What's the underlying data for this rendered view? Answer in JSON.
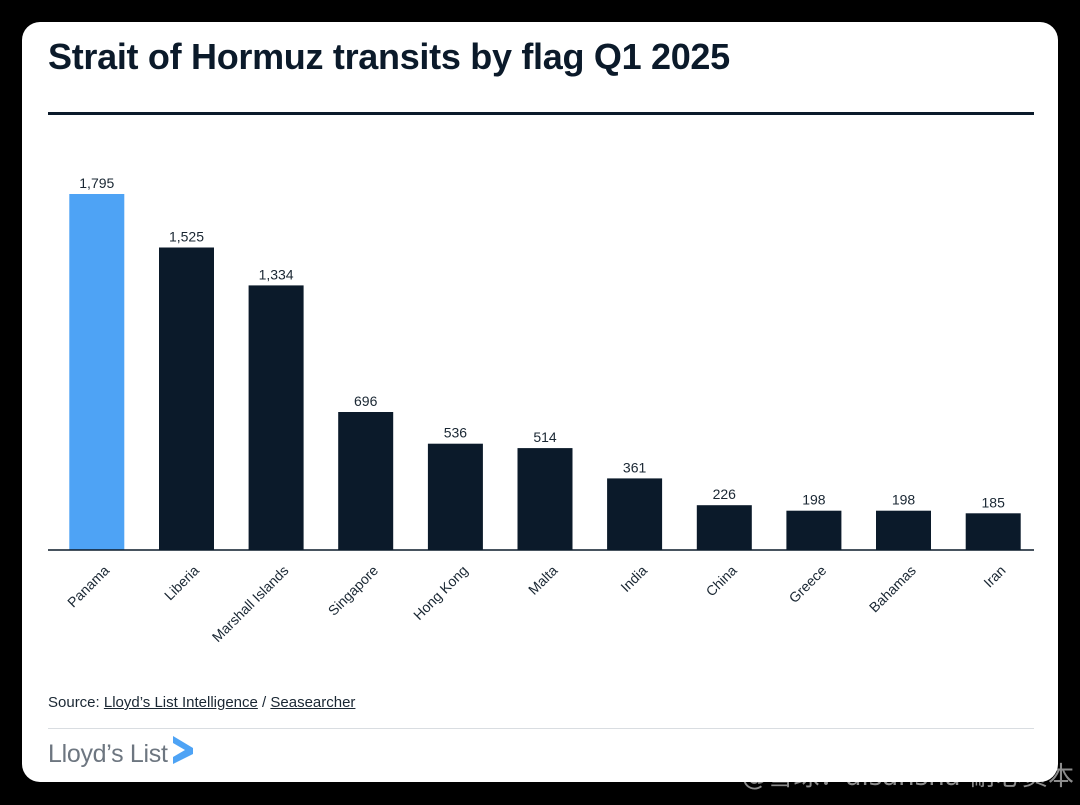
{
  "header": {
    "title": "Strait of Hormuz transits by flag Q1 2025"
  },
  "chart_data": {
    "type": "bar",
    "title": "Strait of Hormuz transits by flag Q1 2025",
    "xlabel": "",
    "ylabel": "",
    "ylim": [
      0,
      1795
    ],
    "grid": false,
    "categories": [
      "Panama",
      "Liberia",
      "Marshall Islands",
      "Singapore",
      "Hong Kong",
      "Malta",
      "India",
      "China",
      "Greece",
      "Bahamas",
      "Iran"
    ],
    "values": [
      1795,
      1525,
      1334,
      696,
      536,
      514,
      361,
      226,
      198,
      198,
      185
    ],
    "value_labels": [
      "1,795",
      "1,525",
      "1,334",
      "696",
      "536",
      "514",
      "361",
      "226",
      "198",
      "198",
      "185"
    ],
    "highlight_index": 0,
    "colors": {
      "bar": "#0b1a2a",
      "highlight": "#4ea3f5",
      "axis": "#0b1a2a",
      "label": "#1a2733"
    }
  },
  "footer": {
    "source_prefix": "Source: ",
    "source_link_1": "Lloyd’s List Intelligence",
    "source_separator": " / ",
    "source_link_2": "Seasearcher",
    "brand": "Lloyd’s List"
  },
  "watermark": "@雪球：aisansha-耐心资本"
}
